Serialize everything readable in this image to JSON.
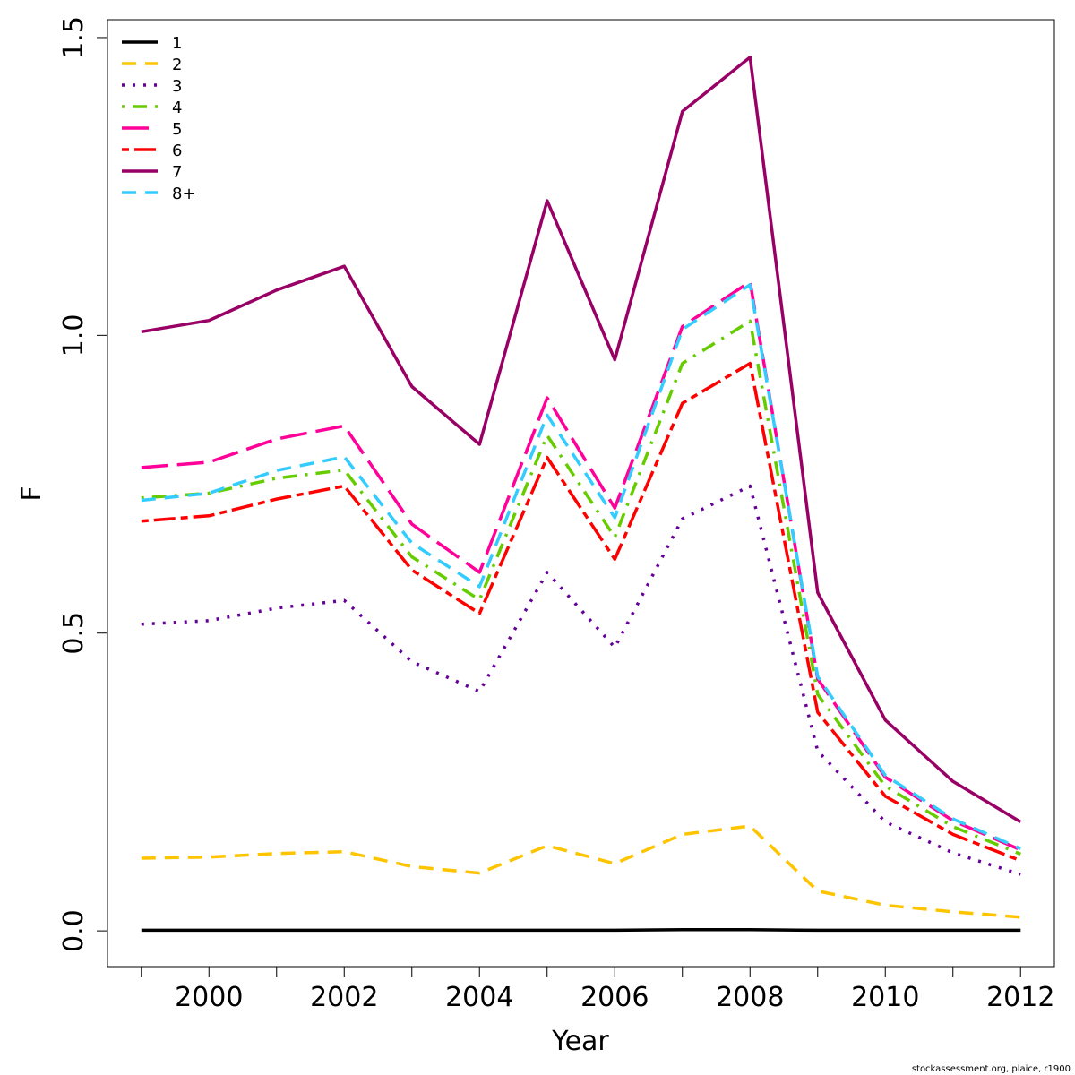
{
  "chart_data": {
    "type": "line",
    "xlabel": "Year",
    "ylabel": "F",
    "xlim": [
      1998.5,
      2012.5
    ],
    "ylim": [
      -0.06,
      1.53
    ],
    "x_ticks": [
      2000,
      2002,
      2004,
      2006,
      2008,
      2010,
      2012
    ],
    "y_ticks": [
      0.0,
      0.5,
      1.0,
      1.5
    ],
    "y_tick_labels": [
      "0.0",
      "0.5",
      "1.0",
      "1.5"
    ],
    "legend_position": "top-left",
    "grid": false,
    "x": [
      1999,
      2000,
      2001,
      2002,
      2003,
      2004,
      2005,
      2006,
      2007,
      2008,
      2009,
      2010,
      2011,
      2012
    ],
    "series": [
      {
        "name": "1",
        "color": "#000000",
        "dash": "solid",
        "values": [
          0.001,
          0.001,
          0.001,
          0.001,
          0.001,
          0.001,
          0.001,
          0.001,
          0.002,
          0.002,
          0.001,
          0.001,
          0.001,
          0.001
        ]
      },
      {
        "name": "2",
        "color": "#FFC400",
        "dash": "dashed",
        "values": [
          0.122,
          0.124,
          0.13,
          0.133,
          0.108,
          0.097,
          0.143,
          0.113,
          0.162,
          0.176,
          0.067,
          0.043,
          0.032,
          0.023
        ]
      },
      {
        "name": "3",
        "color": "#660099",
        "dash": "dotted",
        "values": [
          0.515,
          0.521,
          0.542,
          0.555,
          0.452,
          0.402,
          0.602,
          0.476,
          0.692,
          0.747,
          0.302,
          0.183,
          0.131,
          0.095
        ]
      },
      {
        "name": "4",
        "color": "#66CC00",
        "dash": "dotdash",
        "values": [
          0.727,
          0.735,
          0.76,
          0.774,
          0.628,
          0.556,
          0.832,
          0.661,
          0.953,
          1.024,
          0.397,
          0.243,
          0.175,
          0.129
        ]
      },
      {
        "name": "5",
        "color": "#FF0099",
        "dash": "longdash",
        "values": [
          0.778,
          0.787,
          0.826,
          0.848,
          0.683,
          0.602,
          0.895,
          0.71,
          1.015,
          1.09,
          0.423,
          0.258,
          0.185,
          0.136
        ]
      },
      {
        "name": "6",
        "color": "#FF0000",
        "dash": "twodash",
        "values": [
          0.688,
          0.697,
          0.725,
          0.747,
          0.606,
          0.533,
          0.795,
          0.624,
          0.886,
          0.953,
          0.367,
          0.226,
          0.162,
          0.118
        ]
      },
      {
        "name": "7",
        "color": "#990066",
        "dash": "solid",
        "values": [
          1.006,
          1.025,
          1.076,
          1.116,
          0.914,
          0.817,
          1.226,
          0.959,
          1.376,
          1.467,
          0.568,
          0.354,
          0.251,
          0.183
        ]
      },
      {
        "name": "8+",
        "color": "#33CCFF",
        "dash": "dashed",
        "values": [
          0.723,
          0.735,
          0.773,
          0.796,
          0.651,
          0.578,
          0.866,
          0.694,
          1.01,
          1.085,
          0.427,
          0.261,
          0.188,
          0.138
        ]
      }
    ]
  },
  "footer": "stockassessment.org, plaice, r1900"
}
